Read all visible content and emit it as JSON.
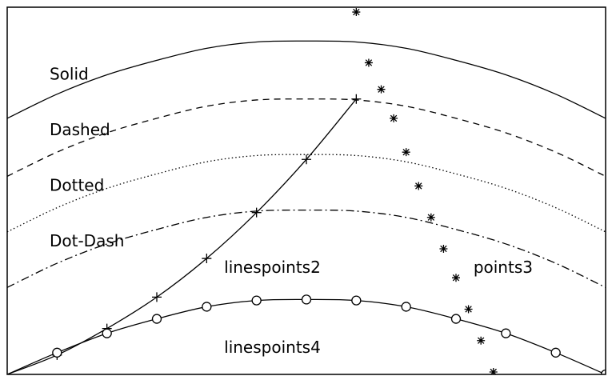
{
  "chart_data": {
    "type": "line",
    "title": "",
    "xlabel": "",
    "ylabel": "",
    "xlim": [
      0,
      12
    ],
    "ylim": [
      0,
      7.6
    ],
    "grid": false,
    "series": [
      {
        "name": "Solid",
        "style": "solid",
        "markers": "none",
        "x": [
          0,
          1,
          2,
          3,
          4,
          5,
          6,
          7,
          8,
          9,
          10,
          11,
          12
        ],
        "y": [
          5.3,
          5.8,
          6.2,
          6.5,
          6.75,
          6.88,
          6.9,
          6.88,
          6.75,
          6.5,
          6.2,
          5.8,
          5.3
        ]
      },
      {
        "name": "Dashed",
        "style": "dashed",
        "markers": "none",
        "x": [
          0,
          1,
          2,
          3,
          4,
          5,
          6,
          7,
          8,
          9,
          10,
          11,
          12
        ],
        "y": [
          4.1,
          4.6,
          5.0,
          5.3,
          5.55,
          5.68,
          5.7,
          5.68,
          5.55,
          5.3,
          5.0,
          4.6,
          4.1
        ]
      },
      {
        "name": "Dotted",
        "style": "dotted",
        "markers": "none",
        "x": [
          0,
          1,
          2,
          3,
          4,
          5,
          6,
          7,
          8,
          9,
          10,
          11,
          12
        ],
        "y": [
          2.95,
          3.45,
          3.85,
          4.15,
          4.4,
          4.53,
          4.55,
          4.53,
          4.4,
          4.15,
          3.85,
          3.45,
          2.95
        ]
      },
      {
        "name": "Dot-Dash",
        "style": "dotdash",
        "markers": "none",
        "x": [
          0,
          1,
          2,
          3,
          4,
          5,
          6,
          7,
          8,
          9,
          10,
          11,
          12
        ],
        "y": [
          1.8,
          2.3,
          2.7,
          3.0,
          3.25,
          3.38,
          3.4,
          3.38,
          3.25,
          3.0,
          2.7,
          2.3,
          1.8
        ]
      },
      {
        "name": "linespoints2",
        "style": "solid",
        "markers": "plus",
        "x": [
          0,
          1,
          2,
          3,
          4,
          5,
          6,
          7
        ],
        "y": [
          0,
          0.4,
          0.95,
          1.6,
          2.4,
          3.35,
          4.45,
          5.7
        ],
        "marker_x": [
          1,
          2,
          3,
          4,
          5,
          6,
          7
        ],
        "marker_y": [
          0.4,
          0.95,
          1.6,
          2.4,
          3.35,
          4.45,
          5.7
        ]
      },
      {
        "name": "points3",
        "style": "none",
        "markers": "star",
        "x": [
          7,
          7.25,
          7.5,
          7.75,
          8,
          8.25,
          8.5,
          8.75,
          9,
          9.25,
          9.5,
          9.75
        ],
        "y": [
          7.5,
          6.45,
          5.9,
          5.3,
          4.6,
          3.9,
          3.25,
          2.6,
          2.0,
          1.35,
          0.7,
          0.05
        ]
      },
      {
        "name": "linespoints4",
        "style": "solid",
        "markers": "circle",
        "x": [
          0,
          1,
          2,
          3,
          4,
          5,
          6,
          7,
          8,
          9,
          10,
          11,
          12
        ],
        "y": [
          0,
          0.45,
          0.85,
          1.15,
          1.4,
          1.53,
          1.55,
          1.53,
          1.4,
          1.15,
          0.85,
          0.45,
          0
        ],
        "marker_x": [
          1,
          2,
          3,
          4,
          5,
          6,
          7,
          8,
          9,
          10,
          11,
          12
        ],
        "marker_y": [
          0.45,
          0.85,
          1.15,
          1.4,
          1.53,
          1.55,
          1.53,
          1.4,
          1.15,
          0.85,
          0.45,
          0
        ]
      }
    ],
    "annotations": [
      {
        "text": "Solid",
        "x": 0.85,
        "y": 6.1
      },
      {
        "text": "Dashed",
        "x": 0.85,
        "y": 4.95
      },
      {
        "text": "Dotted",
        "x": 0.85,
        "y": 3.8
      },
      {
        "text": "Dot-Dash",
        "x": 0.85,
        "y": 2.65
      },
      {
        "text": "linespoints2",
        "x": 4.35,
        "y": 2.1
      },
      {
        "text": "points3",
        "x": 9.35,
        "y": 2.1
      },
      {
        "text": "linespoints4",
        "x": 4.35,
        "y": 0.45
      }
    ]
  }
}
